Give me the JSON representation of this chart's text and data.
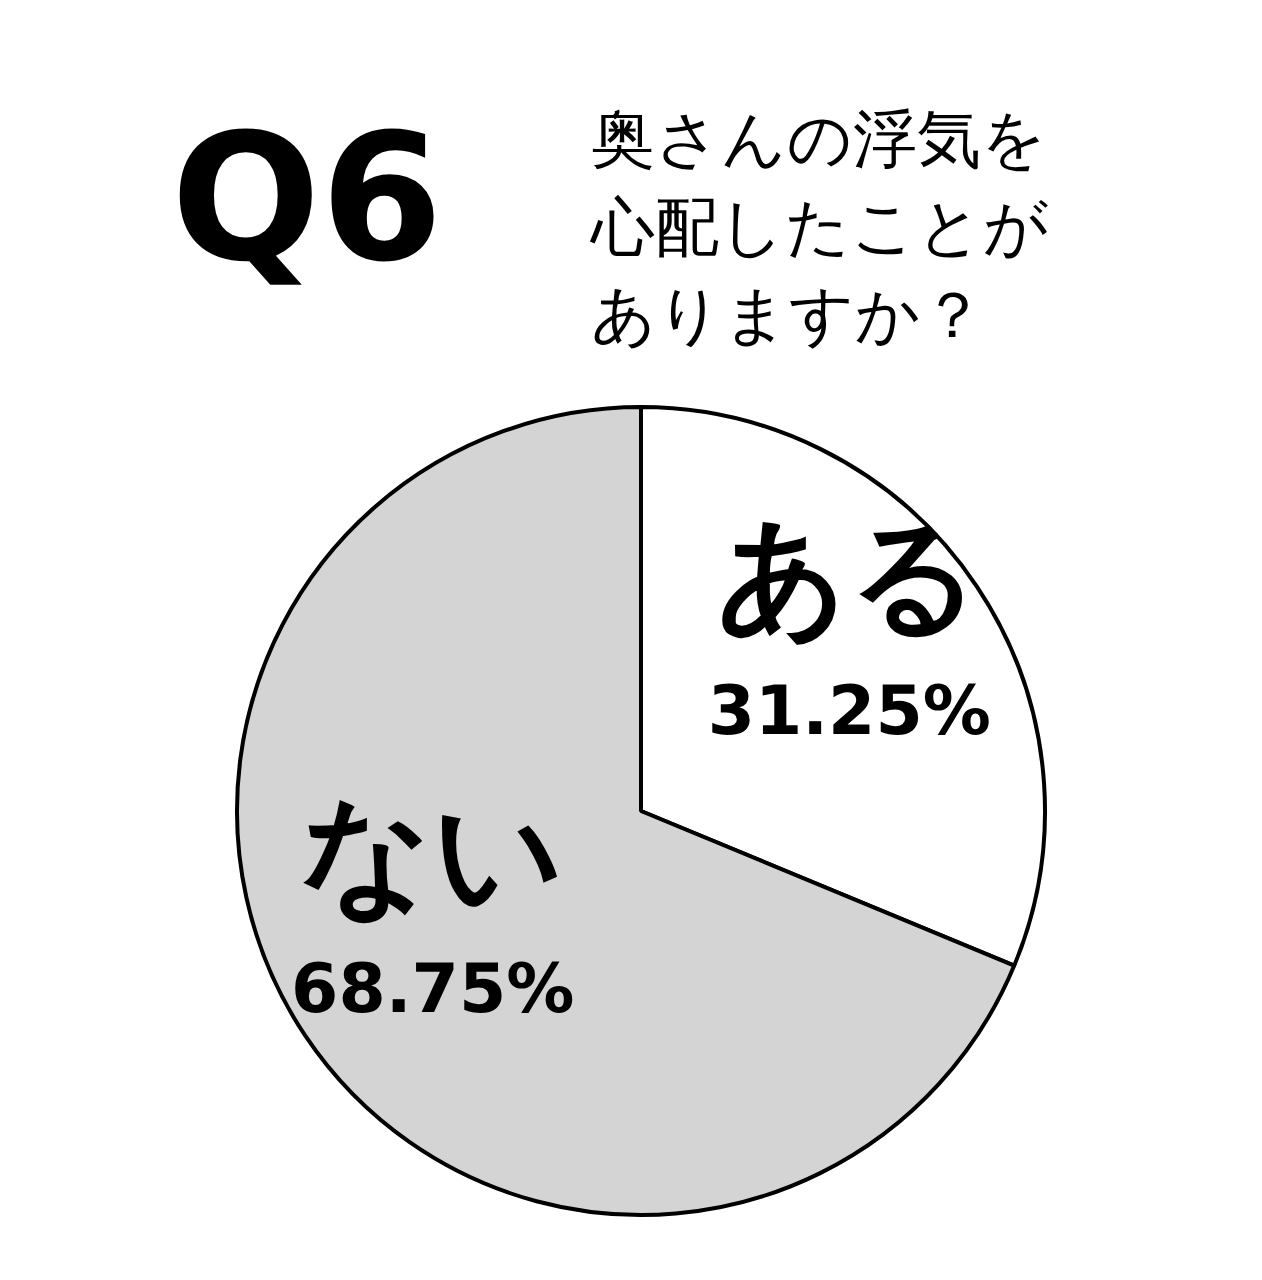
{
  "chart_data": {
    "type": "pie",
    "title": "Q6",
    "subtitle": "奥さんの浮気を心配したことがありますか？",
    "categories": [
      "ある",
      "ない"
    ],
    "values": [
      31.25,
      68.75
    ],
    "colors": [
      "#ffffff",
      "#d4d4d4"
    ],
    "value_labels": [
      "31.25%",
      "68.75%"
    ]
  }
}
